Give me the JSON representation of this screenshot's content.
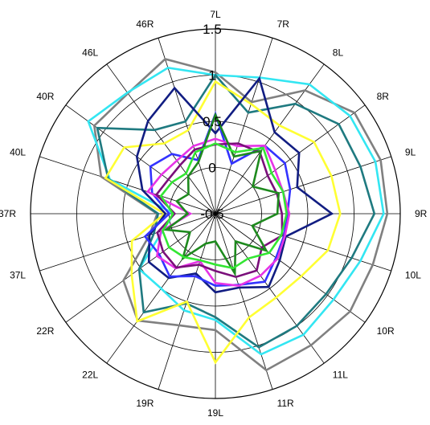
{
  "chart_data": {
    "type": "radar",
    "title": "",
    "categories": [
      "7L",
      "7R",
      "8L",
      "8R",
      "9L",
      "9R",
      "10L",
      "10R",
      "11L",
      "11R",
      "19L",
      "19R",
      "22L",
      "22R",
      "37L",
      "37R",
      "40L",
      "40R",
      "46L",
      "46R"
    ],
    "rings": [
      -0.5,
      0,
      0.5,
      1,
      1.5
    ],
    "ring_labels": [
      "-0.5",
      "0",
      "0.5",
      "1",
      "1.5"
    ],
    "range": [
      -0.5,
      1.5
    ],
    "grid": true,
    "legend": "none",
    "series": [
      {
        "color": "#808080",
        "values": [
          1.03,
          0.77,
          1.15,
          1.36,
          1.38,
          1.36,
          1.29,
          1.3,
          1.26,
          1.28,
          0.76,
          0.77,
          0.93,
          0.73,
          0.25,
          0.13,
          0.8,
          1.12,
          1.11,
          1.26
        ]
      },
      {
        "color": "#33e6f2",
        "values": [
          1.0,
          1.05,
          1.23,
          1.3,
          1.32,
          1.32,
          1.15,
          1.08,
          1.12,
          1.1,
          0.65,
          0.6,
          0.5,
          0.52,
          0.1,
          -0.05,
          0.7,
          1.2,
          1.12,
          1.16
        ]
      },
      {
        "color": "#1f7a80",
        "values": [
          1.0,
          0.65,
          0.97,
          1.15,
          1.15,
          1.22,
          1.05,
          0.98,
          1.0,
          1.02,
          0.62,
          0.52,
          0.82,
          0.52,
          0.2,
          0.12,
          0.72,
          1.08,
          0.62,
          0.55
        ]
      },
      {
        "color": "#ffff33",
        "values": [
          0.93,
          0.75,
          0.68,
          0.82,
          0.82,
          0.85,
          0.78,
          0.65,
          0.62,
          0.68,
          1.11,
          0.5,
          0.94,
          0.62,
          0.45,
          0.05,
          0.75,
          0.72,
          0.44,
          0.45
        ]
      },
      {
        "color": "#111d82",
        "values": [
          0.37,
          1.04,
          0.59,
          0.62,
          0.43,
          0.76,
          0.3,
          0.36,
          0.48,
          0.34,
          0.35,
          0.18,
          0.36,
          0.39,
          0.25,
          0.04,
          0.33,
          0.55,
          0.74,
          0.93
        ]
      },
      {
        "color": "#3333ff",
        "values": [
          0.58,
          0.07,
          0.41,
          0.43,
          0.35,
          0.28,
          0.28,
          0.31,
          0.41,
          0.31,
          0.28,
          0.21,
          0.34,
          0.25,
          0.3,
          0.0,
          0.22,
          0.37,
          0.3,
          0.11
        ]
      },
      {
        "color": "#e633e6",
        "values": [
          0.31,
          0.27,
          0.41,
          0.3,
          0.27,
          0.3,
          0.29,
          0.33,
          0.33,
          0.32,
          0.25,
          0.04,
          0.23,
          0.28,
          0.12,
          -0.23,
          0.27,
          0.22,
          0.21,
          0.27
        ]
      },
      {
        "color": "#7a0f7a",
        "values": [
          0.25,
          0.3,
          0.32,
          0.2,
          0.2,
          0.22,
          0.26,
          0.12,
          0.26,
          0.22,
          0.12,
          0.08,
          0.22,
          0.2,
          0.16,
          -0.06,
          0.17,
          0.13,
          0.15,
          0.23
        ]
      },
      {
        "color": "#1e8a1e",
        "values": [
          0.57,
          0.15,
          0.34,
          0.0,
          0.22,
          0.17,
          -0.08,
          0.18,
          -0.13,
          0.18,
          -0.2,
          -0.16,
          0.1,
          -0.16,
          0.06,
          -0.2,
          -0.06,
          -0.14,
          0.0,
          0.09
        ]
      },
      {
        "color": "#33e633",
        "values": [
          0.26,
          0.2,
          0.38,
          0.25,
          0.27,
          0.27,
          0.25,
          0.22,
          0.1,
          0.12,
          0.05,
          0.03,
          0.08,
          0.12,
          0.1,
          -0.04,
          0.12,
          0.08,
          0.04,
          0.2
        ]
      }
    ]
  }
}
